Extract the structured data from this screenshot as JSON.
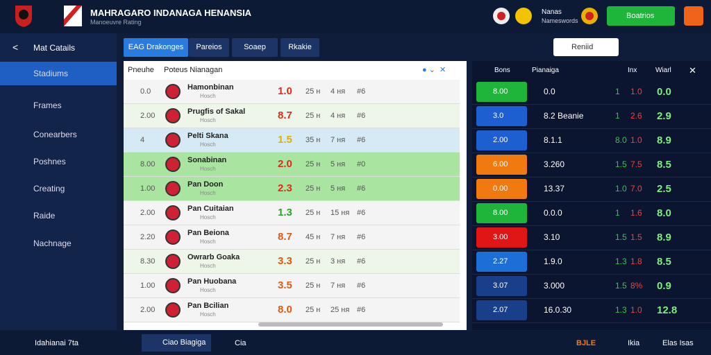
{
  "header": {
    "title": "MAHRAGARO INDANAGA HENANSIA",
    "subtitle": "Manoeuvre Rating",
    "user_name": "Nanas",
    "user_sub": "Nameswords",
    "search_button": "Boatrios"
  },
  "sidebar": {
    "items": [
      "Stadiums",
      "Frames",
      "Conearbers",
      "Poshnes",
      "Creating",
      "Raide",
      "Nachnage"
    ],
    "active": 0
  },
  "tabs": {
    "items": [
      "EAG Drakonges",
      "Pareios",
      "Soaep",
      "Rkakie"
    ],
    "active": 0,
    "search": "Reniid"
  },
  "table": {
    "header": [
      "Pneuhe",
      "Poteus Nianagan"
    ],
    "rows": [
      [
        "0.0",
        "Hamonbinan",
        "Hosch",
        "1.0",
        "25 н",
        "4 ня",
        "#6"
      ],
      [
        "2.00",
        "Prugfis of Sakal",
        "Hosch",
        "8.7",
        "25 н",
        "4 ня",
        "#6"
      ],
      [
        "4",
        "Pelti Skana",
        "Hosch",
        "1.5",
        "35 н",
        "7 ня",
        "#6"
      ],
      [
        "8.00",
        "Sonabinan",
        "Hosch",
        "2.0",
        "25 н",
        "5 ня",
        "#0"
      ],
      [
        "1.00",
        "Pan Doon",
        "Hosch",
        "2.3",
        "25 н",
        "5 ня",
        "#6"
      ],
      [
        "2.00",
        "Pan Cuitaian",
        "Hosch",
        "1.3",
        "25 н",
        "15 ня",
        "#6"
      ],
      [
        "2.20",
        "Pan Beiona",
        "Hosch",
        "8.7",
        "45 н",
        "7 ня",
        "#6"
      ],
      [
        "8.30",
        "Owrarb Goaka",
        "Hosch",
        "3.3",
        "25 н",
        "3 ня",
        "#6"
      ],
      [
        "1.00",
        "Pan Huobana",
        "Hosch",
        "3.5",
        "25 н",
        "7 ня",
        "#6"
      ],
      [
        "2.00",
        "Pan Bcilian",
        "Hosch",
        "8.0",
        "25 н",
        "25 ня",
        "#6"
      ]
    ],
    "row_colors": [
      "#f4f4f4",
      "#eef6ea",
      "#d6eaf5",
      "#a9e4a0",
      "#a9e4a0",
      "#f4f4f4",
      "#f4f4f4",
      "#eef6ea",
      "#f4f4f4",
      "#f4f4f4"
    ],
    "score_colors": [
      "#e02a1a",
      "#e02a1a",
      "#e0b000",
      "#e02a1a",
      "#e02a1a",
      "#2aa52a",
      "#e05a10",
      "#e05a10",
      "#e05a10",
      "#e05a10"
    ]
  },
  "stats": {
    "header": [
      "Bons",
      "Pianaiga",
      "Inx",
      "Wiarl"
    ],
    "rows": [
      [
        "8.00",
        "0.0",
        "1",
        "1.0",
        "0.0"
      ],
      [
        "3.0",
        "8.2 Beanie",
        "1",
        "2.6",
        "2.9"
      ],
      [
        "2.00",
        "8.1.1",
        "8.0",
        "1.0",
        "8.9"
      ],
      [
        "6.00",
        "3.260",
        "1.5",
        "7.5",
        "8.5"
      ],
      [
        "0.00",
        "13.37",
        "1.0",
        "7.0",
        "2.5"
      ],
      [
        "8.00",
        "0.0.0",
        "1",
        "1.6",
        "8.0"
      ],
      [
        "3.00",
        "3.10",
        "1.5",
        "1.5",
        "8.9"
      ],
      [
        "2.27",
        "1.9.0",
        "1.3",
        "1.8",
        "8.5"
      ],
      [
        "3.07",
        "3.000",
        "1.5",
        "8%",
        "0.9"
      ],
      [
        "2.07",
        "16.0.30",
        "1.3",
        "1.0",
        "12.8"
      ]
    ],
    "button_colors": [
      "#1fb43a",
      "#1d5fd0",
      "#1d5fd0",
      "#f07a10",
      "#f07a10",
      "#1fb43a",
      "#e01515",
      "#1d6fd8",
      "#1a3f8a",
      "#1a3f8a"
    ]
  },
  "footer": {
    "left": "Idahianai 7ta",
    "tab1": "Ciao Biagiga",
    "tab2": "Cia",
    "right1": "BJLE",
    "right2": "Ikia",
    "right3": "Elas Isas"
  }
}
